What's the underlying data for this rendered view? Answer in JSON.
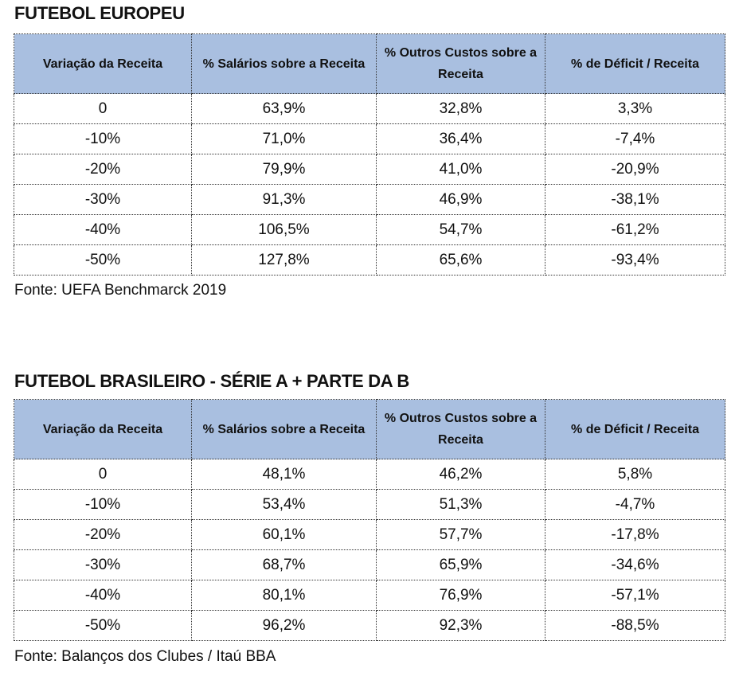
{
  "tables": [
    {
      "title": "FUTEBOL EUROPEU",
      "headers": [
        "Variação da Receita",
        "% Salários sobre a Receita",
        "% Outros Custos sobre a Receita",
        "% de Déficit / Receita"
      ],
      "rows": [
        [
          "0",
          "63,9%",
          "32,8%",
          "3,3%"
        ],
        [
          "-10%",
          "71,0%",
          "36,4%",
          "-7,4%"
        ],
        [
          "-20%",
          "79,9%",
          "41,0%",
          "-20,9%"
        ],
        [
          "-30%",
          "91,3%",
          "46,9%",
          "-38,1%"
        ],
        [
          "-40%",
          "106,5%",
          "54,7%",
          "-61,2%"
        ],
        [
          "-50%",
          "127,8%",
          "65,6%",
          "-93,4%"
        ]
      ],
      "source": "Fonte: UEFA Benchmarck 2019"
    },
    {
      "title": "FUTEBOL BRASILEIRO - SÉRIE A + PARTE DA B",
      "headers": [
        "Variação da Receita",
        "% Salários sobre a Receita",
        "% Outros Custos sobre a Receita",
        "% de Déficit / Receita"
      ],
      "rows": [
        [
          "0",
          "48,1%",
          "46,2%",
          "5,8%"
        ],
        [
          "-10%",
          "53,4%",
          "51,3%",
          "-4,7%"
        ],
        [
          "-20%",
          "60,1%",
          "57,7%",
          "-17,8%"
        ],
        [
          "-30%",
          "68,7%",
          "65,9%",
          "-34,6%"
        ],
        [
          "-40%",
          "80,1%",
          "76,9%",
          "-57,1%"
        ],
        [
          "-50%",
          "96,2%",
          "92,3%",
          "-88,5%"
        ]
      ],
      "source": "Fonte: Balanços dos Clubes / Itaú BBA"
    }
  ],
  "colors": {
    "header_bg": "#a9bfe0"
  }
}
